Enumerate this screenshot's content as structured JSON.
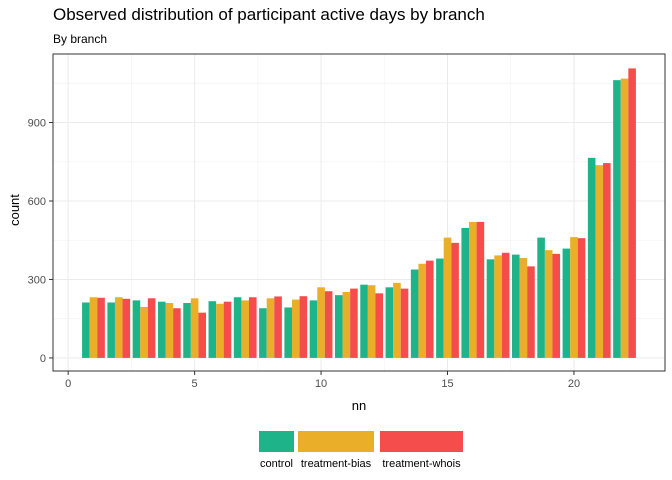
{
  "chart_data": {
    "type": "bar",
    "title": "Observed distribution of participant active days by branch",
    "subtitle": "By branch",
    "xlabel": "nn",
    "ylabel": "count",
    "xlim": [
      -0.6,
      23.6
    ],
    "ylim": [
      -50,
      1162
    ],
    "x_ticks": [
      0,
      5,
      10,
      15,
      20
    ],
    "y_ticks": [
      0,
      300,
      600,
      900
    ],
    "grid": true,
    "legend_position": "bottom",
    "x": [
      1,
      2,
      3,
      4,
      5,
      6,
      7,
      8,
      9,
      10,
      11,
      12,
      13,
      14,
      15,
      16,
      17,
      18,
      19,
      20,
      21,
      22
    ],
    "series": [
      {
        "name": "control",
        "color": "#1FB38A",
        "values": [
          212,
          212,
          220,
          215,
          210,
          217,
          232,
          190,
          193,
          220,
          240,
          280,
          270,
          338,
          380,
          497,
          377,
          395,
          460,
          418,
          765,
          1062
        ]
      },
      {
        "name": "treatment-bias",
        "color": "#EBAE28",
        "values": [
          232,
          232,
          195,
          210,
          228,
          207,
          220,
          228,
          223,
          270,
          252,
          278,
          287,
          360,
          460,
          520,
          392,
          382,
          412,
          462,
          737,
          1068
        ]
      },
      {
        "name": "treatment-whois",
        "color": "#F44D4C",
        "values": [
          230,
          226,
          228,
          190,
          173,
          215,
          232,
          235,
          236,
          255,
          265,
          247,
          265,
          372,
          440,
          520,
          402,
          350,
          398,
          458,
          745,
          1107
        ]
      }
    ]
  }
}
